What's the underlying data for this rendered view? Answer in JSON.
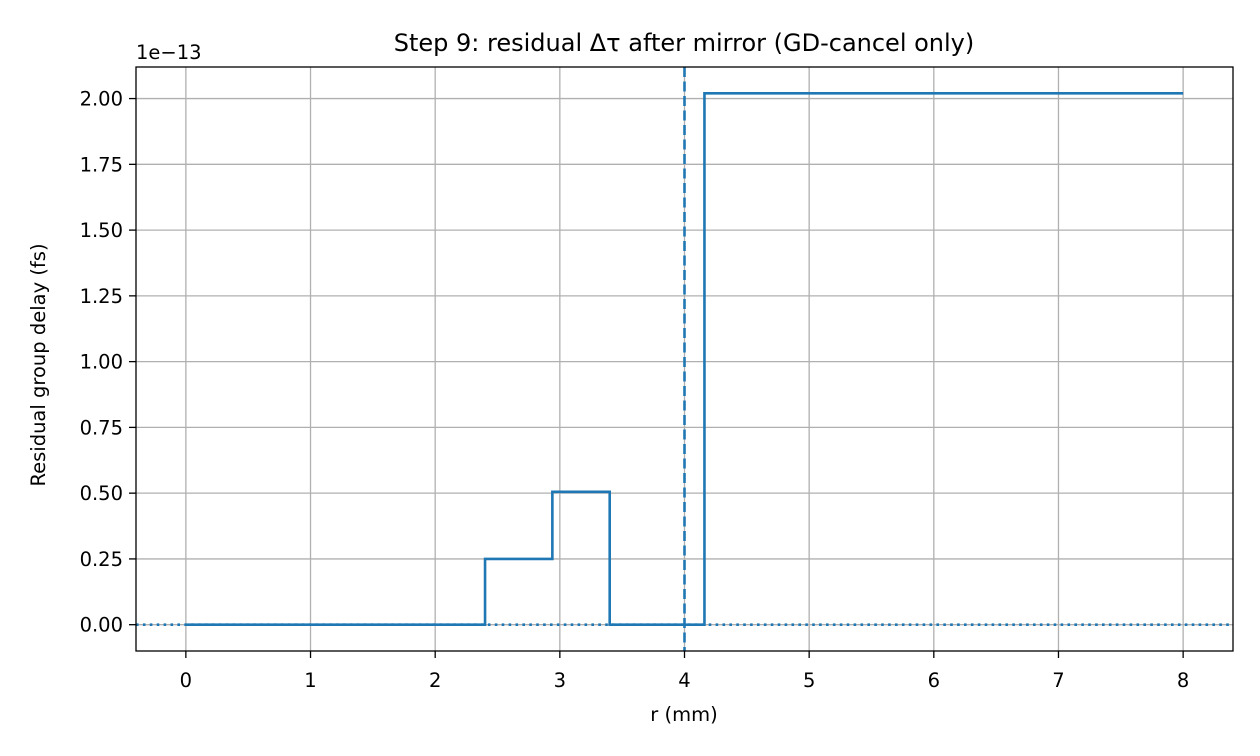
{
  "chart_data": {
    "type": "line",
    "title": "Step 9: residual Δτ after mirror (GD-cancel only)",
    "xlabel": "r (mm)",
    "ylabel": "Residual group delay (fs)",
    "y_offset_label": "1e−13",
    "y_scale_factor": 1e-13,
    "xlim": [
      -0.4,
      8.4
    ],
    "ylim": [
      -0.1,
      2.12
    ],
    "x_ticks": [
      0,
      1,
      2,
      3,
      4,
      5,
      6,
      7,
      8
    ],
    "x_tick_labels": [
      "0",
      "1",
      "2",
      "3",
      "4",
      "5",
      "6",
      "7",
      "8"
    ],
    "y_ticks": [
      0.0,
      0.25,
      0.5,
      0.75,
      1.0,
      1.25,
      1.5,
      1.75,
      2.0
    ],
    "y_tick_labels": [
      "0.00",
      "0.25",
      "0.50",
      "0.75",
      "1.00",
      "1.25",
      "1.50",
      "1.75",
      "2.00"
    ],
    "grid": true,
    "series": [
      {
        "color": "#1f77b4",
        "style": "step",
        "x": [
          0,
          2.4,
          2.4,
          2.94,
          2.94,
          3.4,
          3.4,
          4.16,
          4.16,
          8.0
        ],
        "y": [
          0,
          0,
          0.25,
          0.25,
          0.505,
          0.505,
          0,
          0,
          2.02,
          2.02
        ]
      }
    ],
    "reference_lines": [
      {
        "orientation": "vertical",
        "x": 4,
        "color": "#1f77b4",
        "style": "dashed"
      },
      {
        "orientation": "horizontal",
        "y": 0,
        "color": "#1f77b4",
        "style": "dotted"
      }
    ]
  }
}
